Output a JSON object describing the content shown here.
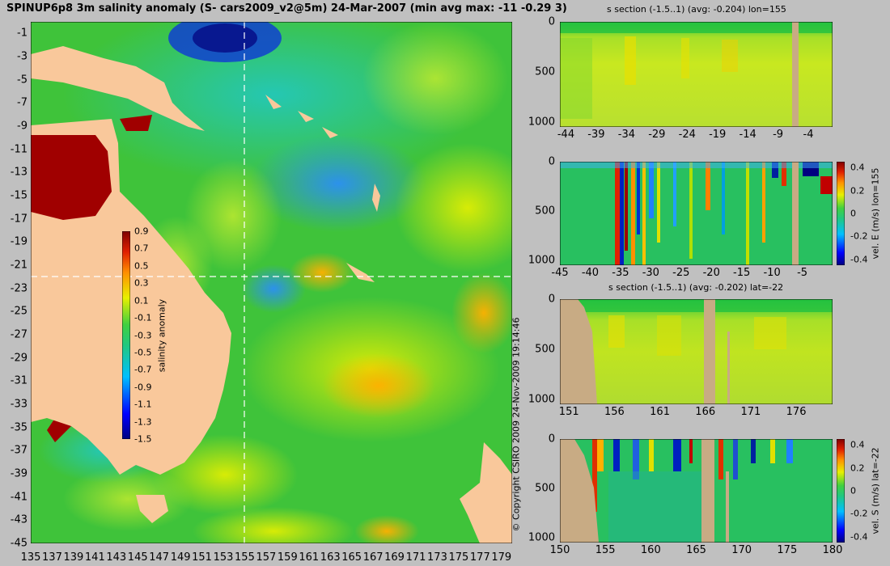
{
  "figure": {
    "title": "SPINUP6p8 3m salinity anomaly (S- cars2009_v2@5m) 24-Mar-2007 (min avg max: -11 -0.29 3)",
    "copyright": "© Copyright CSIRO 2009 24-Nov-2009 19:14:46"
  },
  "colors": {
    "background": "#c0c0c0",
    "land": "#f9c89b",
    "section_land": "#c8ab84",
    "crosshair": "#ffffff"
  },
  "chart_data": [
    {
      "type": "heatmap",
      "name": "salinity anomaly map",
      "title": "SPINUP6p8 3m salinity anomaly (S- cars2009_v2@5m) 24-Mar-2007 (min avg max: -11 -0.29 3)",
      "xlabel": "",
      "ylabel": "",
      "xlim": [
        135,
        180
      ],
      "ylim": [
        -45,
        0
      ],
      "x_ticks": [
        "135",
        "137",
        "139",
        "141",
        "143",
        "145",
        "147",
        "149",
        "151",
        "153",
        "155",
        "157",
        "159",
        "161",
        "163",
        "165",
        "167",
        "169",
        "171",
        "173",
        "175",
        "177",
        "179"
      ],
      "y_ticks": [
        "-1",
        "-3",
        "-5",
        "-7",
        "-9",
        "-11",
        "-13",
        "-15",
        "-17",
        "-19",
        "-21",
        "-23",
        "-25",
        "-27",
        "-29",
        "-31",
        "-33",
        "-35",
        "-37",
        "-39",
        "-41",
        "-43",
        "-45"
      ],
      "section_lon": 155,
      "section_lat": -22,
      "colorbar": {
        "label": "salinity anomaly",
        "range": [
          -1.5,
          0.9
        ],
        "ticks": [
          "0.9",
          "0.7",
          "0.5",
          "0.3",
          "0.1",
          "-0.1",
          "-0.3",
          "-0.5",
          "-0.7",
          "-0.9",
          "-1.1",
          "-1.3",
          "-1.5"
        ]
      }
    },
    {
      "type": "heatmap",
      "name": "s section lon",
      "title": "s section (-1.5..1) (avg: -0.204) lon=155",
      "xlim": [
        -45,
        0
      ],
      "ylim": [
        1050,
        0
      ],
      "x_ticks": [
        "-44",
        "-39",
        "-34",
        "-29",
        "-24",
        "-19",
        "-14",
        "-9",
        "-4"
      ],
      "y_ticks": [
        "0",
        "500",
        "1000"
      ]
    },
    {
      "type": "heatmap",
      "name": "velocity E section",
      "title": "",
      "colorbar_label": "vel. E (m/s) lon=155",
      "colorbar_ticks": [
        "0.4",
        "0.2",
        "0",
        "-0.2",
        "-0.4"
      ],
      "xlim": [
        -45,
        0
      ],
      "ylim": [
        1050,
        0
      ],
      "x_ticks": [
        "-45",
        "-40",
        "-35",
        "-30",
        "-25",
        "-20",
        "-15",
        "-10",
        "-5"
      ],
      "y_ticks": [
        "0",
        "500",
        "1000"
      ]
    },
    {
      "type": "heatmap",
      "name": "s section lat",
      "title": "s section (-1.5..1) (avg: -0.202) lat=-22",
      "xlim": [
        150,
        180
      ],
      "ylim": [
        1050,
        0
      ],
      "x_ticks": [
        "151",
        "156",
        "161",
        "166",
        "171",
        "176"
      ],
      "y_ticks": [
        "0",
        "500",
        "1000"
      ]
    },
    {
      "type": "heatmap",
      "name": "velocity S section",
      "title": "",
      "colorbar_label": "vel. S (m/s) lat=-22",
      "colorbar_ticks": [
        "0.4",
        "0.2",
        "0",
        "-0.2",
        "-0.4"
      ],
      "xlim": [
        150,
        180
      ],
      "ylim": [
        1050,
        0
      ],
      "x_ticks": [
        "150",
        "155",
        "160",
        "165",
        "170",
        "175",
        "180"
      ],
      "y_ticks": [
        "0",
        "500",
        "1000"
      ]
    }
  ]
}
